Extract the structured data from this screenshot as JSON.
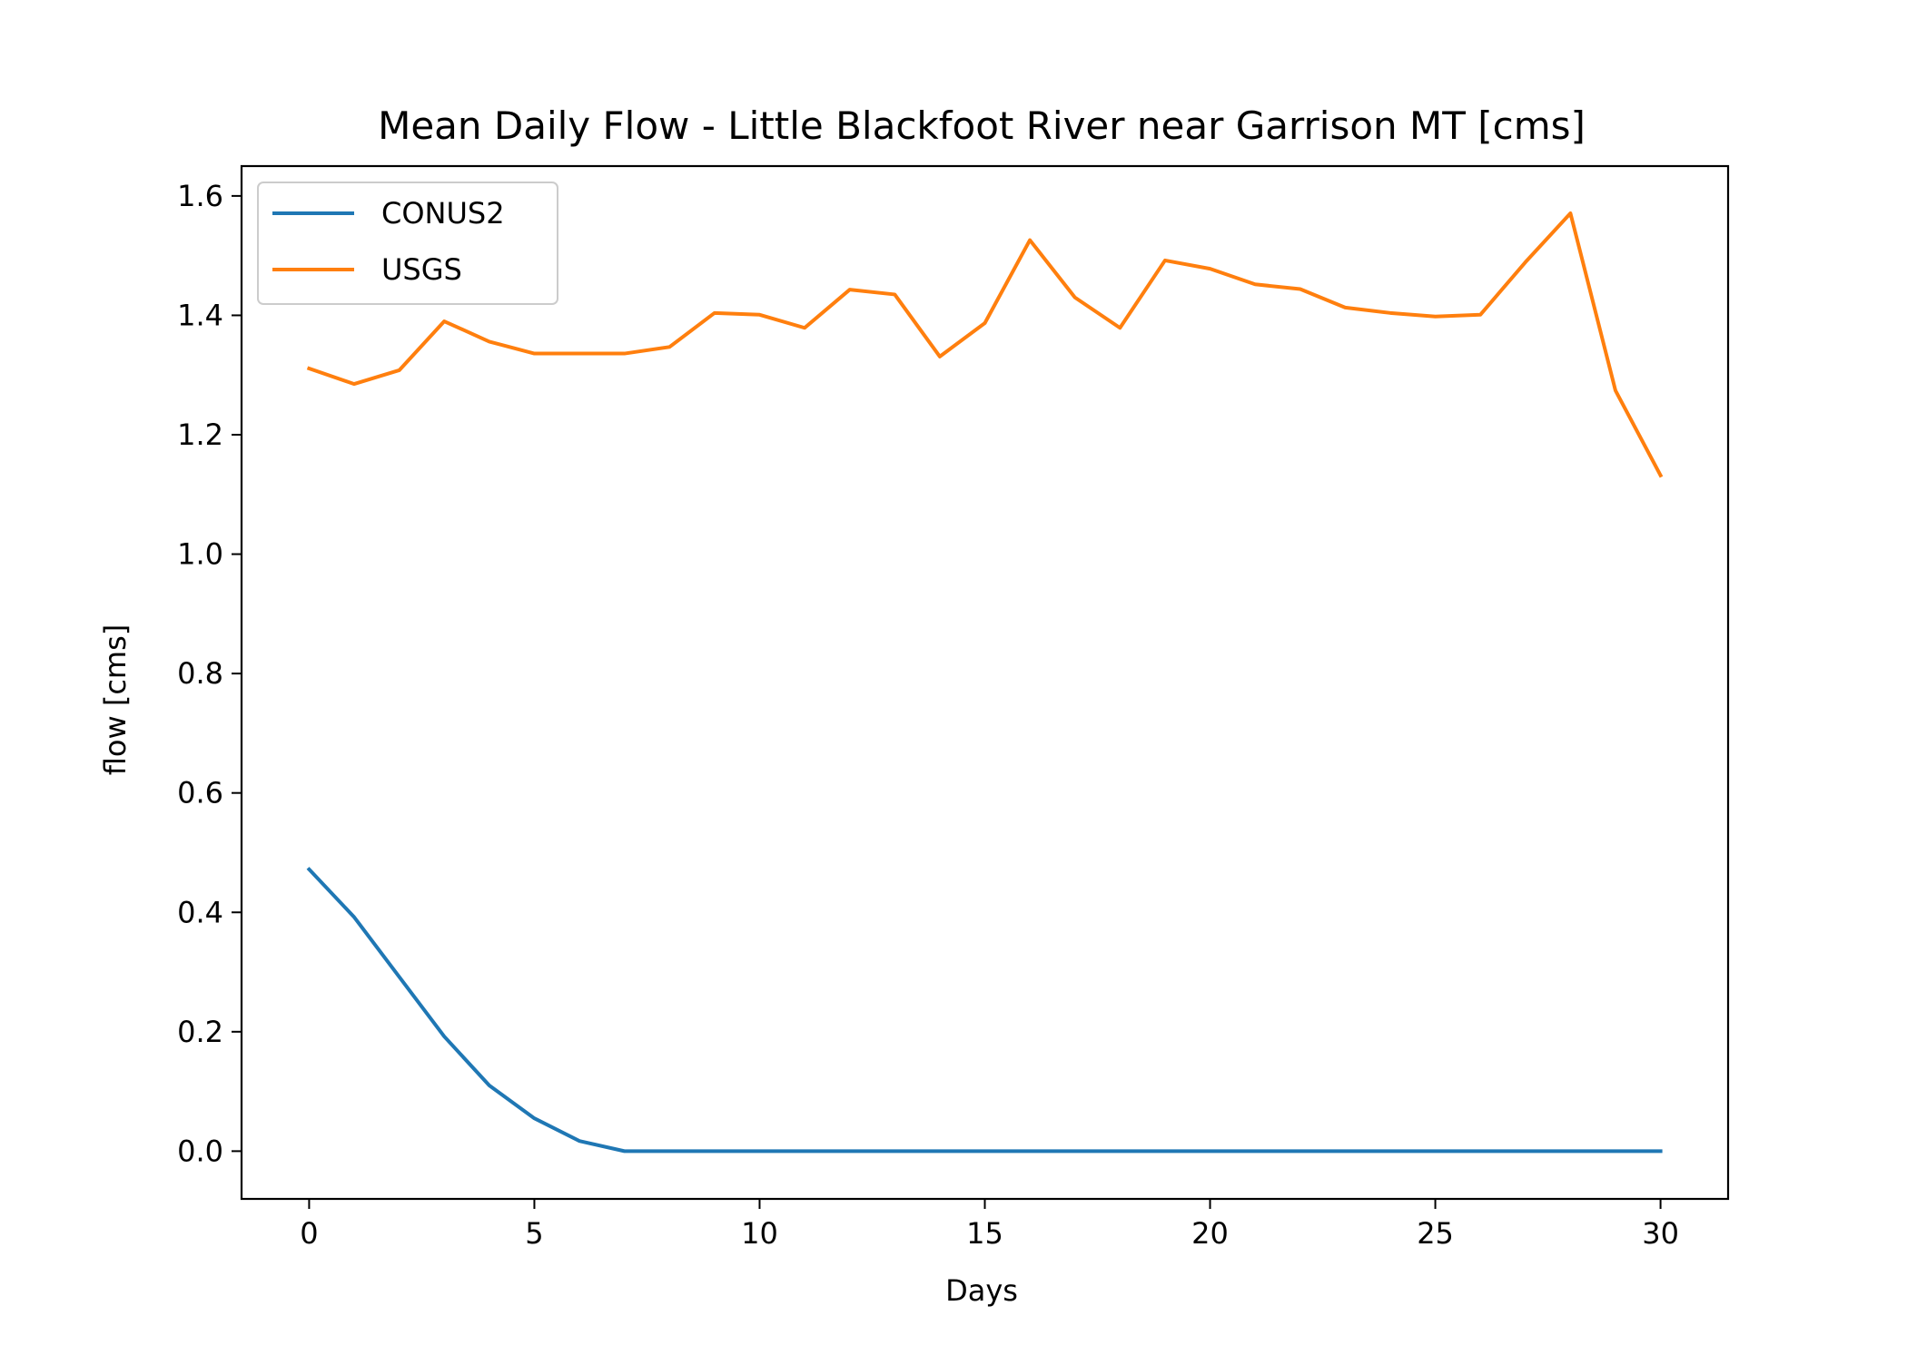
{
  "chart_data": {
    "type": "line",
    "title": "Mean Daily Flow - Little Blackfoot River near Garrison MT [cms]",
    "xlabel": "Days",
    "ylabel": "flow [cms]",
    "xlim": [
      -1.5,
      31.5
    ],
    "ylim": [
      -0.08,
      1.65
    ],
    "xticks": [
      0,
      5,
      10,
      15,
      20,
      25,
      30
    ],
    "yticks": [
      0.0,
      0.2,
      0.4,
      0.6,
      0.8,
      1.0,
      1.2,
      1.4,
      1.6
    ],
    "grid": false,
    "legend_position": "top-left",
    "x": [
      0,
      1,
      2,
      3,
      4,
      5,
      6,
      7,
      8,
      9,
      10,
      11,
      12,
      13,
      14,
      15,
      16,
      17,
      18,
      19,
      20,
      21,
      22,
      23,
      24,
      25,
      26,
      27,
      28,
      29,
      30
    ],
    "series": [
      {
        "name": "CONUS2",
        "color": "#1f77b4",
        "values": [
          0.472,
          0.392,
          0.292,
          0.192,
          0.11,
          0.055,
          0.017,
          0.0,
          0.0,
          0.0,
          0.0,
          0.0,
          0.0,
          0.0,
          0.0,
          0.0,
          0.0,
          0.0,
          0.0,
          0.0,
          0.0,
          0.0,
          0.0,
          0.0,
          0.0,
          0.0,
          0.0,
          0.0,
          0.0,
          0.0,
          0.0
        ]
      },
      {
        "name": "USGS",
        "color": "#ff7f0e",
        "values": [
          1.311,
          1.285,
          1.308,
          1.39,
          1.356,
          1.336,
          1.336,
          1.336,
          1.347,
          1.404,
          1.401,
          1.379,
          1.443,
          1.435,
          1.331,
          1.387,
          1.526,
          1.43,
          1.379,
          1.492,
          1.478,
          1.452,
          1.444,
          1.413,
          1.404,
          1.398,
          1.401,
          1.489,
          1.571,
          1.274,
          1.132
        ]
      }
    ]
  }
}
